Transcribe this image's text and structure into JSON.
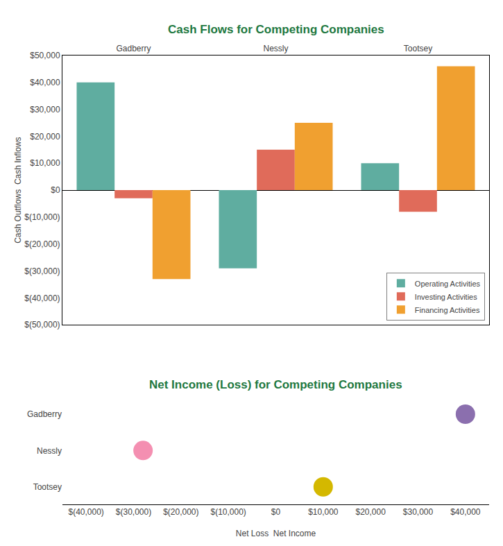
{
  "chart_data": [
    {
      "type": "bar",
      "title": "Cash Flows for Competing Companies",
      "ylabel": "Cash Outflows  Cash Inflows",
      "categories": [
        "Gadberry",
        "Nessly",
        "Tootsey"
      ],
      "series": [
        {
          "name": "Operating Activities",
          "color": "#5fada0",
          "values": [
            40000,
            -29000,
            10000
          ]
        },
        {
          "name": "Investing Activities",
          "color": "#e06b5a",
          "values": [
            -3000,
            15000,
            -8000
          ]
        },
        {
          "name": "Financing Activities",
          "color": "#f0a030",
          "values": [
            -33000,
            25000,
            46000
          ]
        }
      ],
      "ylim": [
        -50000,
        50000
      ],
      "yticks": [
        {
          "value": -50000,
          "label": "$(50,000)"
        },
        {
          "value": -40000,
          "label": "$(40,000)"
        },
        {
          "value": -30000,
          "label": "$(30,000)"
        },
        {
          "value": -20000,
          "label": "$(20,000)"
        },
        {
          "value": -10000,
          "label": "$(10,000)"
        },
        {
          "value": 0,
          "label": "$0"
        },
        {
          "value": 10000,
          "label": "$10,000"
        },
        {
          "value": 20000,
          "label": "$20,000"
        },
        {
          "value": 30000,
          "label": "$30,000"
        },
        {
          "value": 40000,
          "label": "$40,000"
        },
        {
          "value": 50000,
          "label": "$50,000"
        }
      ],
      "grid": false,
      "legend": "lower right"
    },
    {
      "type": "scatter",
      "title": "Net Income (Loss) for Competing Companies",
      "xlabel": "Net Loss  Net Income",
      "orientation": "horizontal",
      "categories": [
        "Gadberry",
        "Nessly",
        "Tootsey"
      ],
      "values": [
        40000,
        -28000,
        10000
      ],
      "colors": [
        "#8b6fae",
        "#f48fb1",
        "#d4b800"
      ],
      "xlim": [
        -45000,
        45000
      ],
      "xticks": [
        {
          "value": -40000,
          "label": "$(40,000)"
        },
        {
          "value": -30000,
          "label": "$(30,000)"
        },
        {
          "value": -20000,
          "label": "$(20,000)"
        },
        {
          "value": -10000,
          "label": "$(10,000)"
        },
        {
          "value": 0,
          "label": "$0"
        },
        {
          "value": 10000,
          "label": "$10,000"
        },
        {
          "value": 20000,
          "label": "$20,000"
        },
        {
          "value": 30000,
          "label": "$30,000"
        },
        {
          "value": 40000,
          "label": "$40,000"
        }
      ],
      "grid": false
    }
  ]
}
